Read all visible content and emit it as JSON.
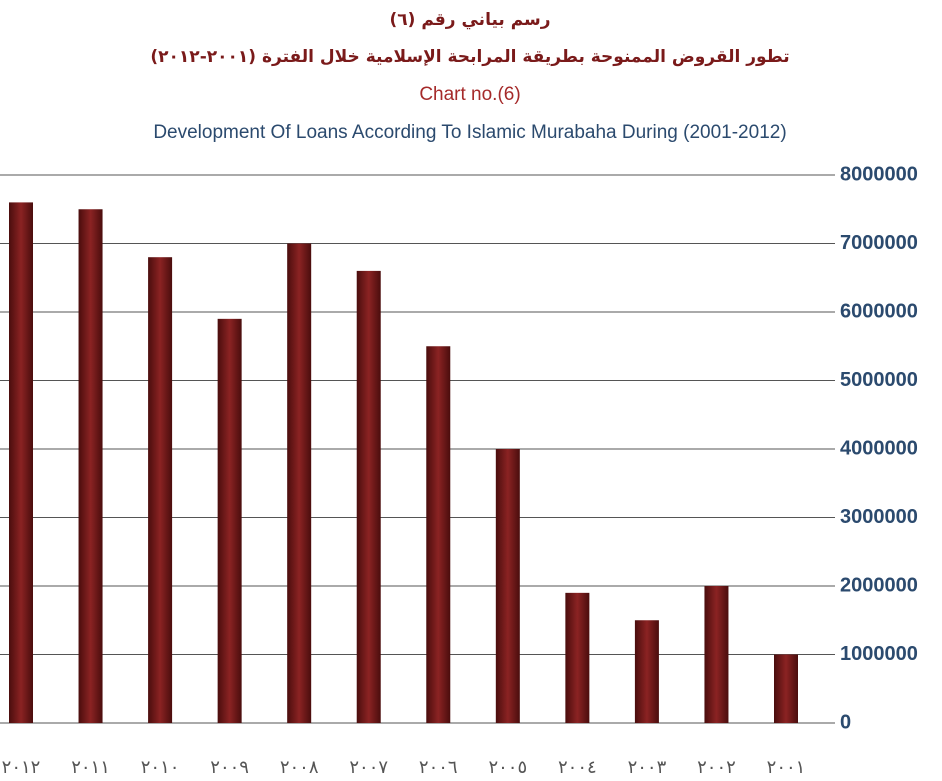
{
  "chart_data": {
    "type": "bar",
    "title": "رسم بياني رقم (٦)",
    "subtitle": "تطور القروض الممنوحة بطريقة المرابحة الإسلامية خلال الفترة (٢٠٠١-٢٠١٢)",
    "title_en": "Chart no.(6)",
    "subtitle_en": "Development Of Loans According To Islamic Murabaha During (2001-2012)",
    "categories": [
      "٢٠١٢",
      "٢٠١١",
      "٢٠١٠",
      "٢٠٠٩",
      "٢٠٠٨",
      "٢٠٠٧",
      "٢٠٠٦",
      "٢٠٠٥",
      "٢٠٠٤",
      "٢٠٠٣",
      "٢٠٠٢",
      "٢٠٠١"
    ],
    "values": [
      7600000,
      7500000,
      6800000,
      5900000,
      7000000,
      6600000,
      5500000,
      4000000,
      1900000,
      1500000,
      2000000,
      1000000
    ],
    "color": "#8b2323",
    "ylim": [
      0,
      8000000
    ],
    "yticks": [
      0,
      1000000,
      2000000,
      3000000,
      4000000,
      5000000,
      6000000,
      7000000,
      8000000
    ],
    "grid": true
  }
}
